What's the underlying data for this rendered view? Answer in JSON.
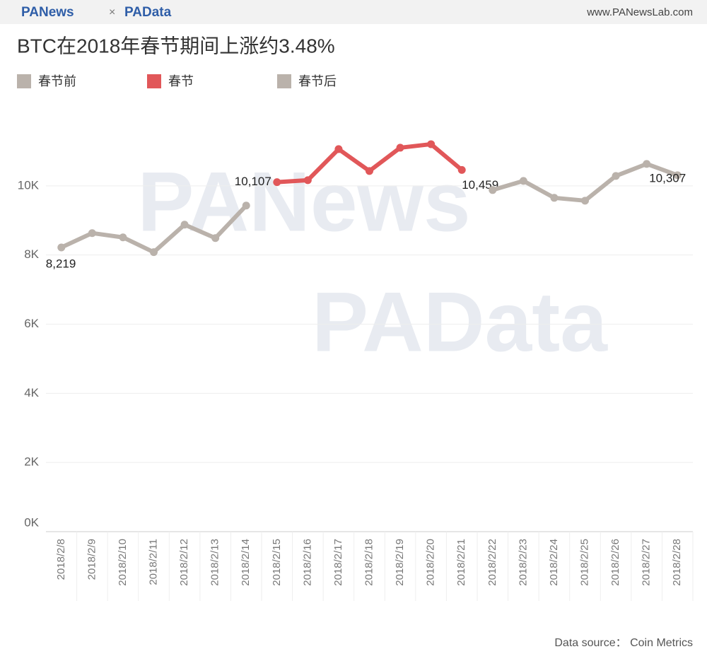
{
  "header": {
    "brand1": "PANews",
    "separator": "×",
    "brand2": "PAData",
    "site": "www.PANewsLab.com"
  },
  "watermark": [
    "PANews",
    "PAData"
  ],
  "chart_data": {
    "type": "line",
    "title": "BTC在2018年春节期间上涨约3.48%",
    "categories": [
      "2018/2/8",
      "2018/2/9",
      "2018/2/10",
      "2018/2/11",
      "2018/2/12",
      "2018/2/13",
      "2018/2/14",
      "2018/2/15",
      "2018/2/16",
      "2018/2/17",
      "2018/2/18",
      "2018/2/19",
      "2018/2/20",
      "2018/2/21",
      "2018/2/22",
      "2018/2/23",
      "2018/2/24",
      "2018/2/25",
      "2018/2/26",
      "2018/2/27",
      "2018/2/28"
    ],
    "series": [
      {
        "name": "春节前",
        "color": "#bab2ab",
        "values": [
          8219,
          8633,
          8510,
          8082,
          8878,
          8490,
          9429,
          null,
          null,
          null,
          null,
          null,
          null,
          null,
          null,
          null,
          null,
          null,
          null,
          null,
          null
        ],
        "value_labels": [
          "8,219",
          null,
          null,
          null,
          null,
          null,
          null,
          null,
          null,
          null,
          null,
          null,
          null,
          null,
          null,
          null,
          null,
          null,
          null,
          null,
          null
        ]
      },
      {
        "name": "春节",
        "color": "#e15759",
        "values": [
          null,
          null,
          null,
          null,
          null,
          null,
          null,
          10107,
          10163,
          11061,
          10429,
          11102,
          11204,
          10459,
          null,
          null,
          null,
          null,
          null,
          null,
          null
        ],
        "value_labels": [
          null,
          null,
          null,
          null,
          null,
          null,
          null,
          "10,107",
          null,
          null,
          null,
          null,
          null,
          "10,459",
          null,
          null,
          null,
          null,
          null,
          null,
          null
        ]
      },
      {
        "name": "春节后",
        "color": "#bab2ab",
        "values": [
          null,
          null,
          null,
          null,
          null,
          null,
          null,
          null,
          null,
          null,
          null,
          null,
          null,
          null,
          9878,
          10143,
          9653,
          9571,
          10286,
          10633,
          10307
        ],
        "value_labels": [
          null,
          null,
          null,
          null,
          null,
          null,
          null,
          null,
          null,
          null,
          null,
          null,
          null,
          null,
          null,
          null,
          null,
          null,
          null,
          null,
          "10,307"
        ]
      }
    ],
    "ylim": [
      0,
      12000
    ],
    "yticks": [
      {
        "value": 0,
        "label": "0K"
      },
      {
        "value": 2000,
        "label": "2K"
      },
      {
        "value": 4000,
        "label": "4K"
      },
      {
        "value": 6000,
        "label": "6K"
      },
      {
        "value": 8000,
        "label": "8K"
      },
      {
        "value": 10000,
        "label": "10K"
      }
    ],
    "grid": true,
    "legend": "top-left",
    "source": "Data source： Coin Metrics"
  }
}
